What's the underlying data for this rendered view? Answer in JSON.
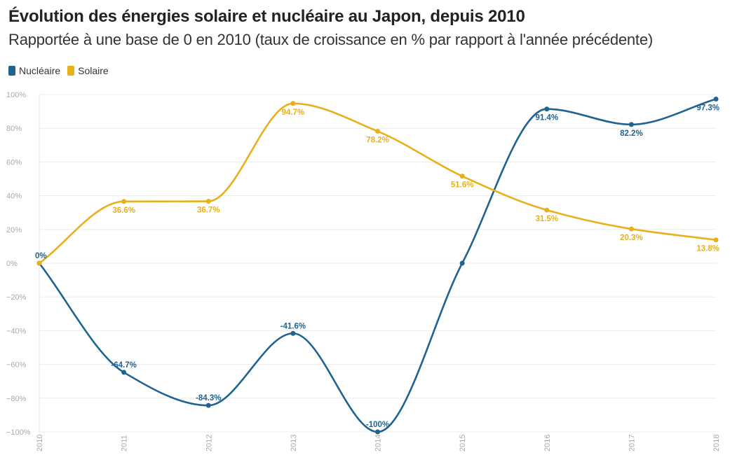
{
  "header": {
    "title": "Évolution des énergies solaire et nucléaire au Japon, depuis 2010",
    "subtitle": "Rapportée à une base de 0 en 2010 (taux de croissance en % par rapport à l'année précédente)"
  },
  "legend": [
    {
      "label": "Nucléaire",
      "color": "#1f6391"
    },
    {
      "label": "Solaire",
      "color": "#e8b01b"
    }
  ],
  "chart_data": {
    "type": "line",
    "title": "Évolution des énergies solaire et nucléaire au Japon, depuis 2010",
    "subtitle": "Rapportée à une base de 0 en 2010 (taux de croissance en % par rapport à l'année précédente)",
    "xlabel": "",
    "ylabel": "",
    "categories": [
      "2010",
      "2011",
      "2012",
      "2013",
      "2014",
      "2015",
      "2016",
      "2017",
      "2018"
    ],
    "ylim": [
      -100,
      100
    ],
    "yticks": [
      -100,
      -80,
      -60,
      -40,
      -20,
      0,
      20,
      40,
      60,
      80,
      100
    ],
    "ytick_labels": [
      "−100%",
      "−80%",
      "−60%",
      "−40%",
      "−20%",
      "0%",
      "20%",
      "40%",
      "60%",
      "80%",
      "100%"
    ],
    "grid": true,
    "legend_position": "top-left",
    "series": [
      {
        "name": "Nucléaire",
        "color": "#1f6391",
        "values": [
          0,
          -64.7,
          -84.3,
          -41.6,
          -100,
          0,
          91.4,
          82.2,
          97.3
        ],
        "labels": [
          "0%",
          "-64.7%",
          "-84.3%",
          "-41.6%",
          "-100%",
          "",
          "91.4%",
          "82.2%",
          "97.3%"
        ],
        "label_pos": [
          "above",
          "above",
          "above",
          "above",
          "above",
          "none",
          "below",
          "below",
          "below"
        ]
      },
      {
        "name": "Solaire",
        "color": "#e8b01b",
        "values": [
          0,
          36.6,
          36.7,
          94.7,
          78.2,
          51.6,
          31.5,
          20.3,
          13.8
        ],
        "labels": [
          "",
          "36.6%",
          "36.7%",
          "94.7%",
          "78.2%",
          "51.6%",
          "31.5%",
          "20.3%",
          "13.8%"
        ],
        "label_pos": [
          "none",
          "below",
          "below",
          "below",
          "below",
          "below",
          "below",
          "below",
          "below"
        ]
      }
    ]
  }
}
